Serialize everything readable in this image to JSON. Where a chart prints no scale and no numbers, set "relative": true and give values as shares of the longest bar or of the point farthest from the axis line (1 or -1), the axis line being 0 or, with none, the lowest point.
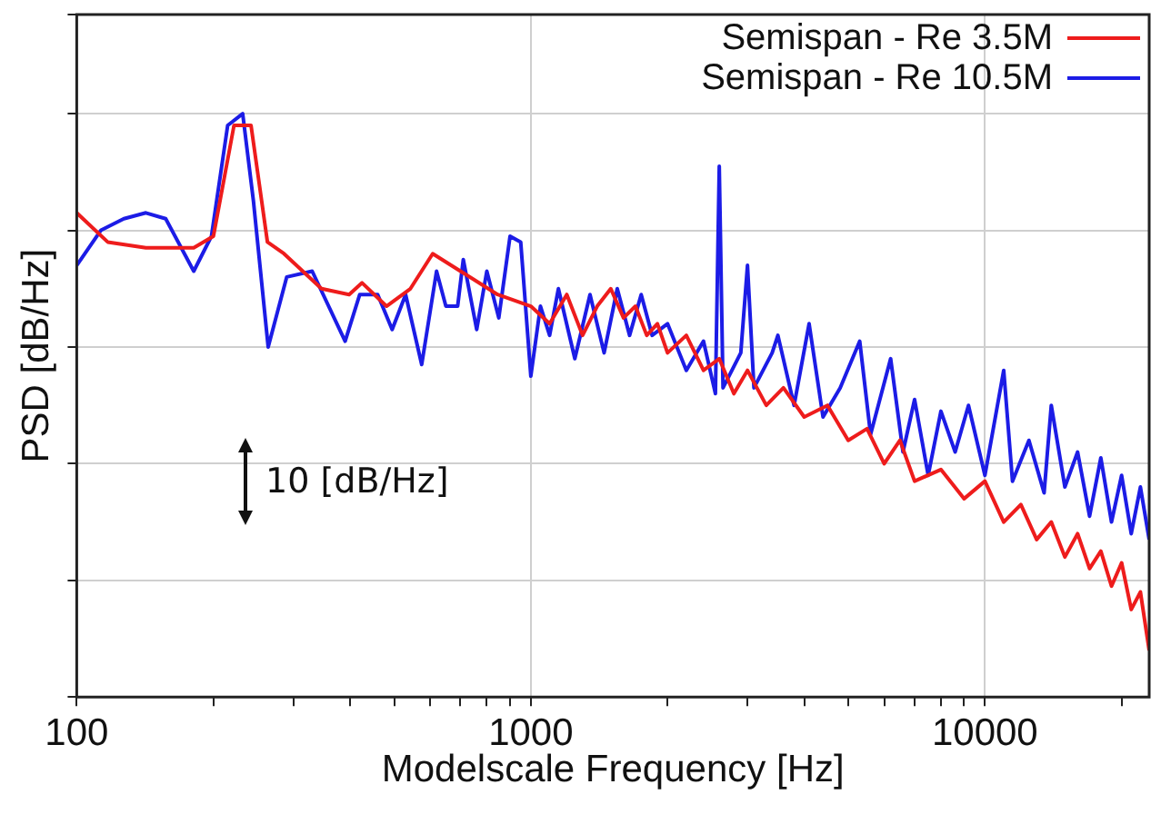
{
  "chart_data": {
    "type": "line",
    "relative": true,
    "xlabel": "Modelscale Frequency [Hz]",
    "ylabel": "PSD [dB/Hz]",
    "log": "x",
    "grid": true,
    "legend": "top right",
    "marker": "none",
    "line_style": "solid",
    "xlim": [
      100,
      23000
    ],
    "xticks": [
      100,
      {
        "value": 200,
        "label": null
      },
      {
        "value": 300,
        "label": null
      },
      {
        "value": 400,
        "label": null
      },
      {
        "value": 500,
        "label": null
      },
      {
        "value": 600,
        "label": null
      },
      {
        "value": 700,
        "label": null
      },
      {
        "value": 800,
        "label": null
      },
      {
        "value": 900,
        "label": null
      },
      1000,
      {
        "value": 2000,
        "label": null
      },
      {
        "value": 3000,
        "label": null
      },
      {
        "value": 4000,
        "label": null
      },
      {
        "value": 5000,
        "label": null
      },
      {
        "value": 6000,
        "label": null
      },
      {
        "value": 7000,
        "label": null
      },
      {
        "value": 8000,
        "label": null
      },
      {
        "value": 9000,
        "label": null
      },
      10000,
      {
        "value": 20000,
        "label": null
      }
    ],
    "annotations": [
      "10 [dB/Hz]"
    ],
    "series": [
      {
        "name": "Semispan - Re 3.5M",
        "color": "#ee1c1c",
        "x": [
          100,
          117,
          142,
          171,
          181,
          200,
          222,
          242,
          263,
          286,
          346,
          398,
          425,
          481,
          543,
          608,
          700,
          845,
          1000,
          1100,
          1200,
          1300,
          1400,
          1500,
          1600,
          1700,
          1800,
          1900,
          2000,
          2200,
          2400,
          2600,
          2800,
          3000,
          3300,
          3600,
          4000,
          4500,
          5000,
          5500,
          6000,
          6500,
          7000,
          8000,
          9000,
          10000,
          11000,
          12000,
          13000,
          14000,
          15000,
          16000,
          17000,
          18000,
          19000,
          20000,
          21000,
          22000,
          23000
        ],
        "values": [
          0.83,
          0.78,
          0.77,
          0.77,
          0.77,
          0.79,
          0.98,
          0.98,
          0.78,
          0.76,
          0.7,
          0.69,
          0.71,
          0.67,
          0.7,
          0.76,
          0.73,
          0.69,
          0.67,
          0.64,
          0.69,
          0.62,
          0.67,
          0.7,
          0.65,
          0.67,
          0.62,
          0.64,
          0.59,
          0.62,
          0.56,
          0.58,
          0.52,
          0.56,
          0.5,
          0.53,
          0.48,
          0.5,
          0.44,
          0.46,
          0.4,
          0.44,
          0.37,
          0.39,
          0.34,
          0.37,
          0.3,
          0.33,
          0.27,
          0.3,
          0.24,
          0.28,
          0.22,
          0.25,
          0.19,
          0.23,
          0.15,
          0.18,
          0.08
        ]
      },
      {
        "name": "Semispan - Re 10.5M",
        "color": "#1c1ce6",
        "x": [
          100,
          113,
          127,
          142,
          157,
          181,
          198,
          215,
          232,
          245,
          264,
          290,
          330,
          390,
          420,
          460,
          495,
          530,
          575,
          620,
          650,
          690,
          710,
          760,
          800,
          850,
          900,
          950,
          1000,
          1050,
          1100,
          1150,
          1250,
          1350,
          1450,
          1550,
          1650,
          1750,
          1850,
          2000,
          2200,
          2400,
          2550,
          2600,
          2650,
          2900,
          3000,
          3100,
          3400,
          3500,
          3800,
          4100,
          4400,
          4800,
          5300,
          5600,
          6200,
          6600,
          7000,
          7500,
          8000,
          8600,
          9200,
          10000,
          11000,
          11500,
          12500,
          13500,
          14000,
          15000,
          16000,
          17000,
          18000,
          19000,
          20000,
          21000,
          22000,
          23000
        ],
        "values": [
          0.74,
          0.8,
          0.82,
          0.83,
          0.82,
          0.73,
          0.79,
          0.98,
          1.0,
          0.85,
          0.6,
          0.72,
          0.73,
          0.61,
          0.69,
          0.69,
          0.63,
          0.69,
          0.57,
          0.73,
          0.67,
          0.67,
          0.75,
          0.63,
          0.73,
          0.65,
          0.79,
          0.78,
          0.55,
          0.67,
          0.62,
          0.7,
          0.58,
          0.69,
          0.59,
          0.7,
          0.62,
          0.69,
          0.62,
          0.64,
          0.56,
          0.61,
          0.52,
          0.91,
          0.53,
          0.59,
          0.74,
          0.53,
          0.59,
          0.62,
          0.5,
          0.64,
          0.48,
          0.53,
          0.61,
          0.45,
          0.58,
          0.42,
          0.51,
          0.38,
          0.49,
          0.42,
          0.5,
          0.38,
          0.56,
          0.37,
          0.44,
          0.35,
          0.5,
          0.36,
          0.42,
          0.31,
          0.41,
          0.3,
          0.38,
          0.28,
          0.36,
          0.27
        ]
      }
    ]
  }
}
